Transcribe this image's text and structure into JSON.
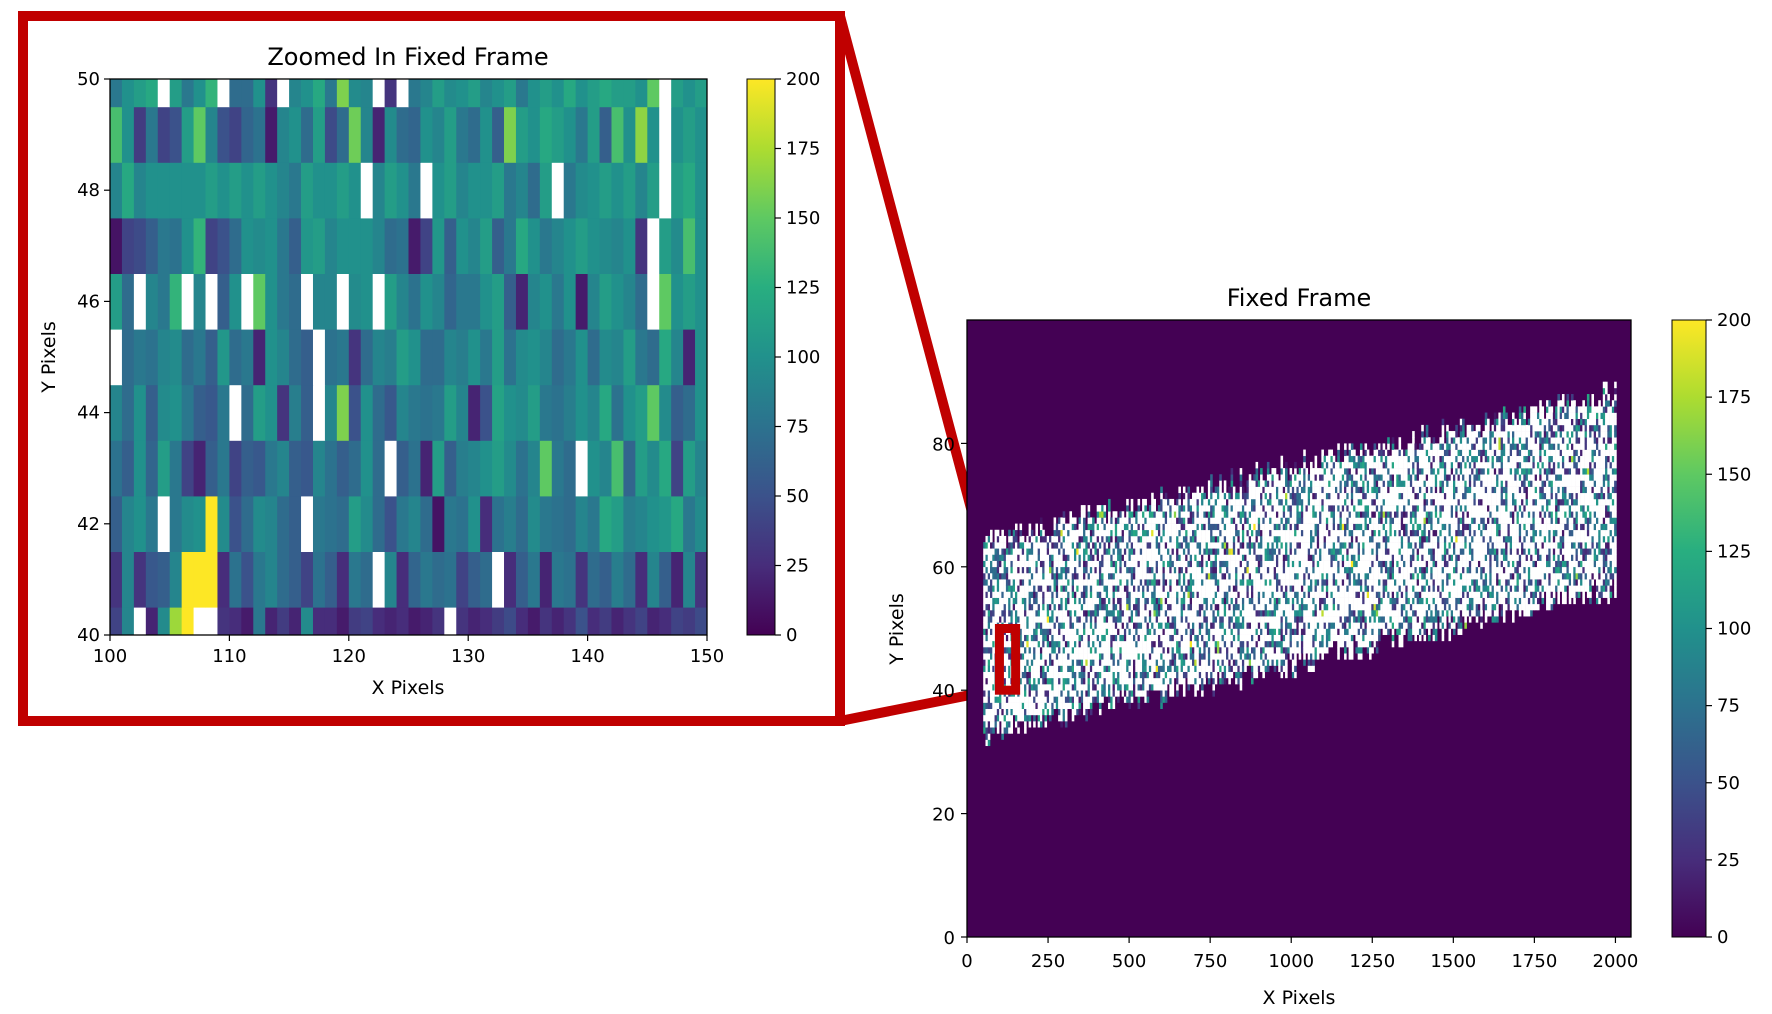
{
  "chart_data": [
    {
      "type": "heatmap",
      "title": "Zoomed In Fixed Frame",
      "xlabel": "X Pixels",
      "ylabel": "Y Pixels",
      "xlim": [
        100,
        150
      ],
      "ylim": [
        40,
        50
      ],
      "x_ticks": [
        "100",
        "110",
        "120",
        "130",
        "140",
        "150"
      ],
      "y_ticks": [
        "40",
        "42",
        "44",
        "46",
        "48",
        "50"
      ],
      "colorbar": {
        "min": 0,
        "max": 200,
        "ticks": [
          "0",
          "25",
          "50",
          "75",
          "100",
          "125",
          "150",
          "175",
          "200"
        ],
        "colormap": "viridis"
      },
      "cell_size": {
        "x": 1,
        "y": 1
      },
      "missing_value_color": "#ffffff",
      "values_rows_bottom_to_top": [
        [
          40,
          90,
          null,
          20,
          95,
          170,
          200,
          null,
          null,
          30,
          25,
          15,
          80,
          20,
          35,
          20,
          95,
          25,
          25,
          15,
          35,
          40,
          25,
          20,
          25,
          15,
          20,
          30,
          null,
          30,
          20,
          25,
          35,
          45,
          25,
          15,
          30,
          20,
          30,
          50,
          25,
          35,
          20,
          30,
          40,
          20,
          25,
          40,
          35,
          45
        ],
        [
          30,
          90,
          30,
          55,
          60,
          90,
          200,
          200,
          200,
          25,
          75,
          50,
          80,
          90,
          70,
          60,
          40,
          75,
          60,
          25,
          80,
          70,
          null,
          90,
          25,
          65,
          80,
          70,
          75,
          40,
          60,
          70,
          null,
          25,
          60,
          80,
          20,
          80,
          75,
          30,
          70,
          60,
          85,
          70,
          25,
          90,
          60,
          20,
          90,
          30
        ],
        [
          60,
          90,
          100,
          80,
          null,
          80,
          95,
          100,
          200,
          95,
          50,
          70,
          95,
          90,
          70,
          60,
          null,
          80,
          75,
          70,
          110,
          95,
          70,
          50,
          80,
          90,
          70,
          10,
          80,
          75,
          100,
          25,
          75,
          85,
          70,
          95,
          80,
          75,
          70,
          90,
          80,
          120,
          110,
          85,
          90,
          100,
          105,
          120,
          80,
          95
        ],
        [
          75,
          60,
          100,
          65,
          110,
          80,
          40,
          20,
          60,
          80,
          40,
          60,
          55,
          80,
          90,
          60,
          55,
          90,
          75,
          60,
          70,
          100,
          70,
          null,
          60,
          75,
          20,
          110,
          60,
          85,
          90,
          100,
          110,
          95,
          75,
          90,
          150,
          80,
          70,
          null,
          100,
          90,
          140,
          65,
          110,
          95,
          120,
          40,
          110,
          90
        ],
        [
          90,
          70,
          100,
          60,
          95,
          100,
          80,
          60,
          55,
          80,
          null,
          70,
          110,
          100,
          30,
          85,
          60,
          null,
          90,
          160,
          50,
          100,
          70,
          55,
          90,
          80,
          75,
          80,
          110,
          90,
          20,
          50,
          115,
          100,
          95,
          110,
          80,
          75,
          85,
          100,
          90,
          120,
          75,
          100,
          110,
          150,
          95,
          60,
          70,
          100
        ],
        [
          null,
          70,
          80,
          75,
          90,
          95,
          70,
          80,
          60,
          105,
          70,
          80,
          20,
          100,
          90,
          70,
          60,
          null,
          75,
          80,
          30,
          70,
          90,
          85,
          110,
          100,
          70,
          70,
          90,
          85,
          100,
          80,
          110,
          75,
          95,
          100,
          90,
          70,
          80,
          100,
          70,
          95,
          90,
          110,
          80,
          70,
          120,
          90,
          20,
          100
        ],
        [
          110,
          70,
          null,
          90,
          80,
          130,
          null,
          90,
          null,
          60,
          100,
          null,
          150,
          100,
          80,
          70,
          null,
          90,
          90,
          null,
          95,
          100,
          null,
          110,
          90,
          75,
          100,
          90,
          65,
          80,
          80,
          100,
          110,
          60,
          20,
          90,
          100,
          80,
          100,
          15,
          90,
          110,
          100,
          90,
          70,
          null,
          150,
          100,
          110,
          100
        ],
        [
          10,
          40,
          45,
          60,
          80,
          75,
          100,
          130,
          40,
          50,
          70,
          100,
          95,
          100,
          80,
          60,
          105,
          110,
          90,
          100,
          100,
          100,
          90,
          70,
          75,
          15,
          40,
          105,
          60,
          100,
          90,
          110,
          60,
          80,
          120,
          100,
          80,
          90,
          100,
          110,
          100,
          95,
          90,
          100,
          30,
          null,
          110,
          95,
          140,
          100
        ],
        [
          90,
          120,
          90,
          100,
          100,
          100,
          100,
          100,
          110,
          100,
          110,
          100,
          110,
          100,
          90,
          80,
          110,
          100,
          100,
          110,
          100,
          null,
          90,
          110,
          100,
          80,
          null,
          100,
          110,
          90,
          100,
          100,
          110,
          80,
          90,
          70,
          110,
          null,
          80,
          95,
          100,
          110,
          100,
          110,
          90,
          110,
          null,
          110,
          120,
          100
        ],
        [
          140,
          100,
          35,
          80,
          40,
          50,
          110,
          150,
          90,
          50,
          40,
          65,
          75,
          15,
          90,
          100,
          70,
          110,
          45,
          70,
          155,
          90,
          20,
          95,
          70,
          65,
          100,
          90,
          110,
          80,
          70,
          100,
          60,
          160,
          110,
          100,
          120,
          110,
          100,
          80,
          110,
          60,
          140,
          100,
          165,
          100,
          null,
          100,
          110,
          100
        ],
        [
          80,
          100,
          110,
          120,
          null,
          110,
          80,
          100,
          130,
          null,
          70,
          70,
          100,
          30,
          null,
          90,
          100,
          120,
          80,
          160,
          95,
          90,
          null,
          30,
          null,
          80,
          90,
          110,
          95,
          100,
          110,
          90,
          100,
          110,
          80,
          100,
          110,
          100,
          120,
          100,
          110,
          120,
          110,
          110,
          100,
          150,
          null,
          110,
          100,
          110
        ]
      ]
    },
    {
      "type": "heatmap",
      "title": "Fixed Frame",
      "xlabel": "X Pixels",
      "ylabel": "Y Pixels",
      "xlim": [
        0,
        2048
      ],
      "ylim": [
        0,
        100
      ],
      "x_ticks": [
        "0",
        "250",
        "500",
        "750",
        "1000",
        "1250",
        "1500",
        "1750",
        "2000"
      ],
      "y_ticks": [
        "0",
        "20",
        "40",
        "60",
        "80"
      ],
      "colorbar": {
        "min": 0,
        "max": 200,
        "ticks": [
          "0",
          "25",
          "50",
          "75",
          "100",
          "125",
          "150",
          "175",
          "200"
        ],
        "colormap": "viridis"
      },
      "background_value": 0,
      "band": {
        "x_start": 50,
        "x_end": 2000,
        "lower_edge_y": [
          33,
          57
        ],
        "upper_edge_y": [
          64,
          88
        ]
      },
      "zoom_box": {
        "x": [
          100,
          150
        ],
        "y": [
          40,
          50
        ],
        "color": "#c00000"
      }
    }
  ],
  "callout": {
    "border_color": "#c00000"
  }
}
